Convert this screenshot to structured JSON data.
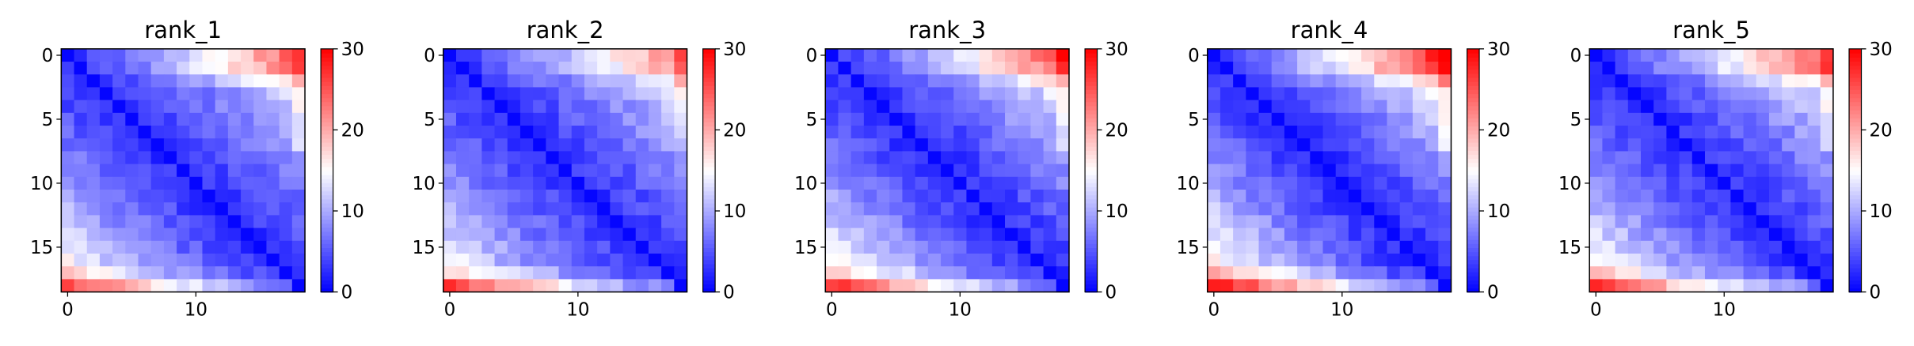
{
  "figure": {
    "background": "#ffffff"
  },
  "chart_data": [
    {
      "type": "heatmap",
      "title": "rank_1",
      "size": 19,
      "x_ticks": [
        0,
        10
      ],
      "y_ticks": [
        0,
        5,
        10,
        15
      ],
      "colorbar": {
        "min": 0,
        "max": 30,
        "ticks": [
          0,
          10,
          20,
          30
        ],
        "colormap": "bwr",
        "colors": [
          "#0000ff",
          "#ffffff",
          "#ff0000"
        ]
      },
      "model": {
        "base": 2.5,
        "dist_factor": 0.45,
        "far_factor": 0.18,
        "bottom_row_boost": 6,
        "top_rows_boost": 4
      }
    },
    {
      "type": "heatmap",
      "title": "rank_2",
      "size": 19,
      "x_ticks": [
        0,
        10
      ],
      "y_ticks": [
        0,
        5,
        10,
        15
      ],
      "colorbar": {
        "min": 0,
        "max": 30,
        "ticks": [
          0,
          10,
          20,
          30
        ],
        "colormap": "bwr",
        "colors": [
          "#0000ff",
          "#ffffff",
          "#ff0000"
        ]
      },
      "model": {
        "base": 2.8,
        "dist_factor": 0.42,
        "far_factor": 0.17,
        "bottom_row_boost": 7,
        "top_rows_boost": 3
      }
    },
    {
      "type": "heatmap",
      "title": "rank_3",
      "size": 19,
      "x_ticks": [
        0,
        10
      ],
      "y_ticks": [
        0,
        5,
        10,
        15
      ],
      "colorbar": {
        "min": 0,
        "max": 30,
        "ticks": [
          0,
          10,
          20,
          30
        ],
        "colormap": "bwr",
        "colors": [
          "#0000ff",
          "#ffffff",
          "#ff0000"
        ]
      },
      "model": {
        "base": 2.4,
        "dist_factor": 0.46,
        "far_factor": 0.2,
        "bottom_row_boost": 7,
        "top_rows_boost": 4
      }
    },
    {
      "type": "heatmap",
      "title": "rank_4",
      "size": 19,
      "x_ticks": [
        0,
        10
      ],
      "y_ticks": [
        0,
        5,
        10,
        15
      ],
      "colorbar": {
        "min": 0,
        "max": 30,
        "ticks": [
          0,
          10,
          20,
          30
        ],
        "colormap": "bwr",
        "colors": [
          "#0000ff",
          "#ffffff",
          "#ff0000"
        ]
      },
      "model": {
        "base": 2.2,
        "dist_factor": 0.5,
        "far_factor": 0.22,
        "bottom_row_boost": 8,
        "top_rows_boost": 5
      }
    },
    {
      "type": "heatmap",
      "title": "rank_5",
      "size": 19,
      "x_ticks": [
        0,
        10
      ],
      "y_ticks": [
        0,
        5,
        10,
        15
      ],
      "colorbar": {
        "min": 0,
        "max": 30,
        "ticks": [
          0,
          10,
          20,
          30
        ],
        "colormap": "bwr",
        "colors": [
          "#0000ff",
          "#ffffff",
          "#ff0000"
        ]
      },
      "model": {
        "base": 2.6,
        "dist_factor": 0.44,
        "far_factor": 0.19,
        "bottom_row_boost": 7,
        "top_rows_boost": 4
      }
    }
  ]
}
